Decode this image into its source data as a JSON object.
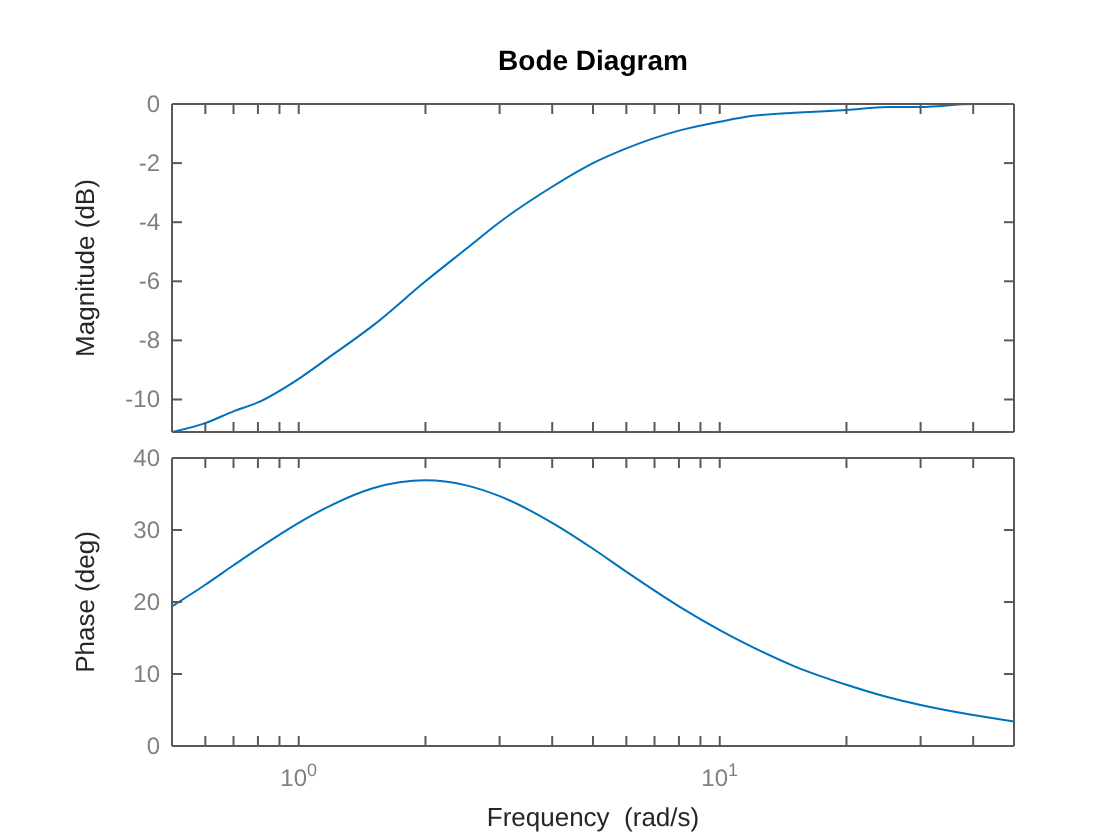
{
  "chart_data": [
    {
      "type": "line",
      "title": "Bode Diagram",
      "ylabel": "Magnitude (dB)",
      "log": "x",
      "tick_labels": "y",
      "grid": false,
      "x": [
        0.5,
        0.6,
        0.7,
        0.8,
        1,
        1.2,
        1.5,
        2,
        2.5,
        3,
        4,
        5,
        6,
        8,
        10,
        12,
        15,
        20,
        25,
        30,
        40,
        50
      ],
      "series": [
        {
          "color": "#0072bd",
          "values": [
            -11.1,
            -10.8,
            -10.4,
            -10.1,
            -9.3,
            -8.5,
            -7.5,
            -6.0,
            -4.9,
            -4.0,
            -2.8,
            -2.0,
            -1.5,
            -0.9,
            -0.6,
            -0.4,
            -0.3,
            -0.2,
            -0.1,
            -0.1,
            0,
            0
          ]
        }
      ],
      "xlim": [
        0.5,
        50
      ],
      "ylim": [
        -11.1,
        0
      ],
      "xticks": [
        {
          "value": 0.6,
          "label": null
        },
        {
          "value": 0.7,
          "label": null
        },
        {
          "value": 0.8,
          "label": null
        },
        {
          "value": 0.9,
          "label": null
        },
        {
          "value": 1,
          "label": null
        },
        {
          "value": 2,
          "label": null
        },
        {
          "value": 3,
          "label": null
        },
        {
          "value": 4,
          "label": null
        },
        {
          "value": 5,
          "label": null
        },
        {
          "value": 6,
          "label": null
        },
        {
          "value": 7,
          "label": null
        },
        {
          "value": 8,
          "label": null
        },
        {
          "value": 9,
          "label": null
        },
        {
          "value": 10,
          "label": null
        },
        {
          "value": 20,
          "label": null
        },
        {
          "value": 30,
          "label": null
        },
        {
          "value": 40,
          "label": null
        }
      ],
      "yticks": [
        -10,
        -8,
        -6,
        -4,
        -2,
        0
      ]
    },
    {
      "type": "line",
      "xlabel": "Frequency  (rad/s)",
      "ylabel": "Phase (deg)",
      "log": "x",
      "grid": false,
      "x": [
        0.5,
        0.6,
        0.7,
        0.8,
        1,
        1.2,
        1.5,
        2,
        2.5,
        3,
        4,
        5,
        6,
        8,
        10,
        12,
        15,
        20,
        25,
        30,
        40,
        50
      ],
      "series": [
        {
          "color": "#0072bd",
          "values": [
            19.4,
            22.4,
            25.1,
            27.4,
            31.0,
            33.5,
            35.8,
            36.9,
            36.2,
            34.7,
            31.0,
            27.4,
            24.2,
            19.4,
            16.1,
            13.7,
            11.1,
            8.5,
            6.8,
            5.7,
            4.3,
            3.4
          ]
        }
      ],
      "xlim": [
        0.5,
        50
      ],
      "ylim": [
        0,
        40
      ],
      "xticks": [
        {
          "value": 0.6,
          "label": null
        },
        {
          "value": 0.7,
          "label": null
        },
        {
          "value": 0.8,
          "label": null
        },
        {
          "value": 0.9,
          "label": null
        },
        {
          "value": 1,
          "label": "10$^{0}$"
        },
        {
          "value": 2,
          "label": null
        },
        {
          "value": 3,
          "label": null
        },
        {
          "value": 4,
          "label": null
        },
        {
          "value": 5,
          "label": null
        },
        {
          "value": 6,
          "label": null
        },
        {
          "value": 7,
          "label": null
        },
        {
          "value": 8,
          "label": null
        },
        {
          "value": 9,
          "label": null
        },
        {
          "value": 10,
          "label": "10$^{1}$"
        },
        {
          "value": 20,
          "label": null
        },
        {
          "value": 30,
          "label": null
        },
        {
          "value": 40,
          "label": null
        }
      ],
      "yticks": [
        0,
        10,
        20,
        30,
        40
      ]
    }
  ]
}
